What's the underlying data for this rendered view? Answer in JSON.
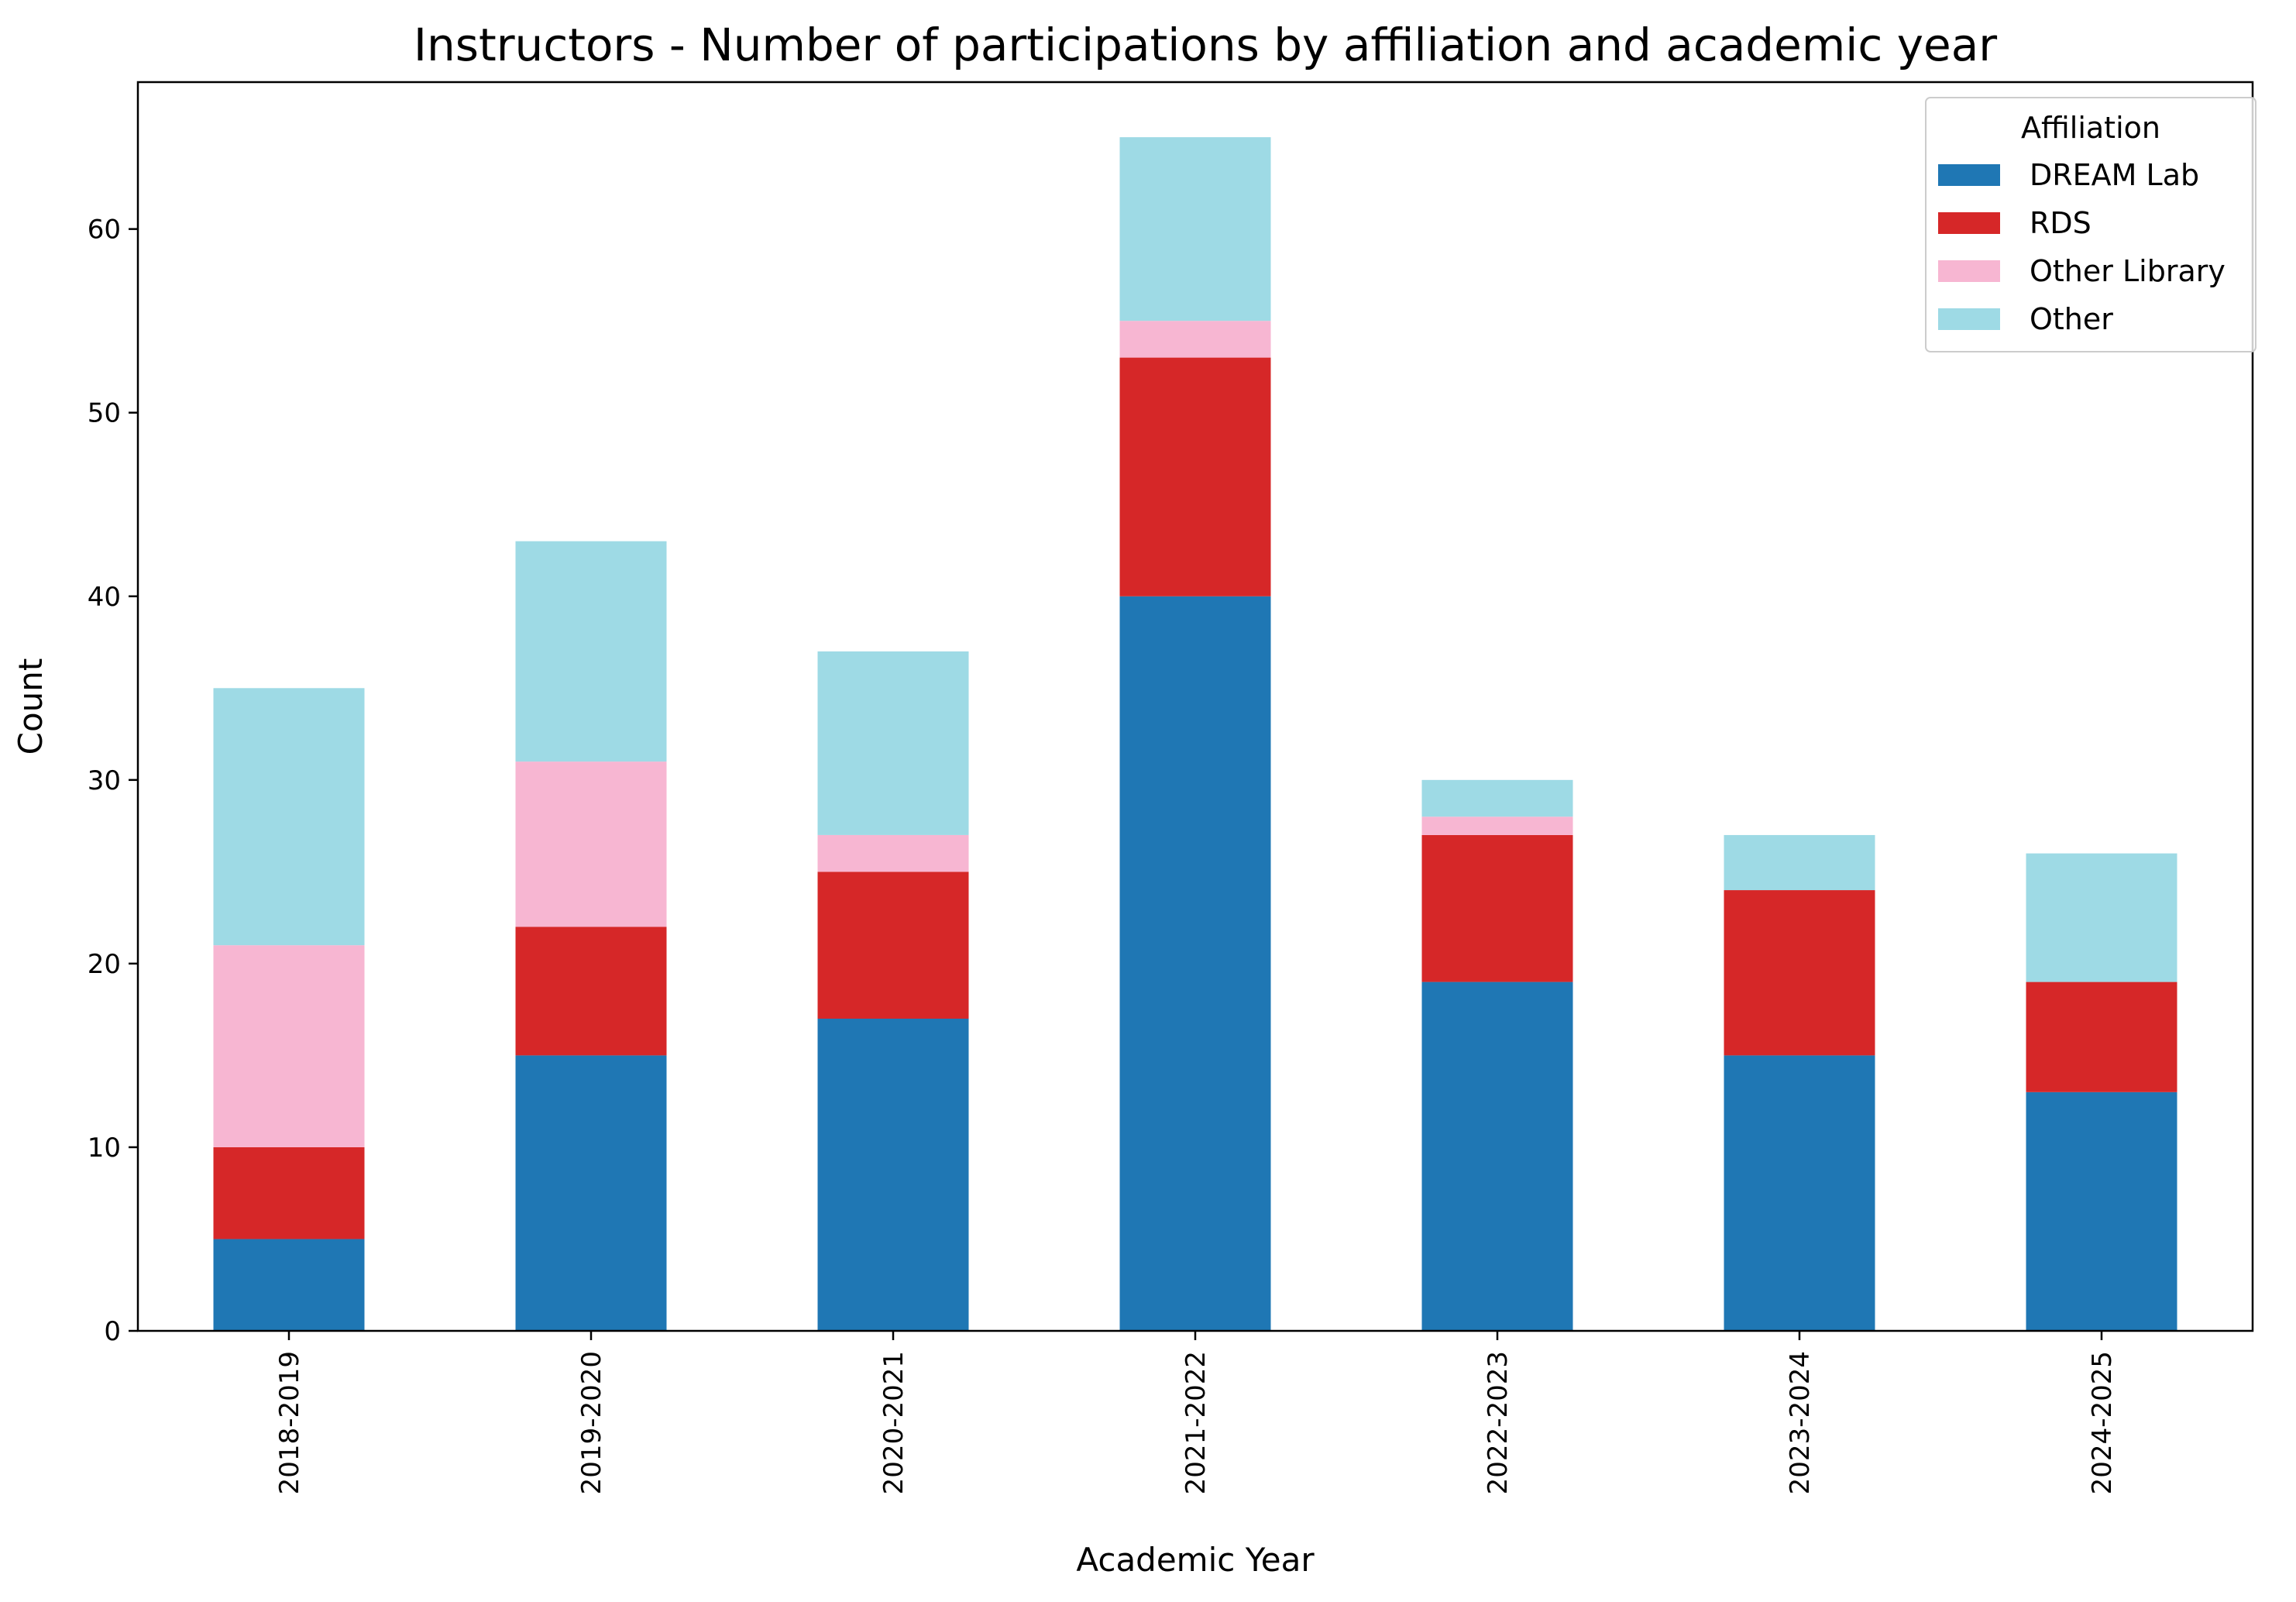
{
  "chart_data": {
    "type": "bar",
    "stacked": true,
    "title": "Instructors - Number of participations by affiliation and academic year",
    "xlabel": "Academic Year",
    "ylabel": "Count",
    "ylim": [
      0,
      68
    ],
    "yticks": [
      0,
      10,
      20,
      30,
      40,
      50,
      60
    ],
    "categories": [
      "2018-2019",
      "2019-2020",
      "2020-2021",
      "2021-2022",
      "2022-2023",
      "2023-2024",
      "2024-2025"
    ],
    "series": [
      {
        "name": "DREAM Lab",
        "color": "#1f77b4",
        "values": [
          5,
          15,
          17,
          40,
          19,
          15,
          13
        ]
      },
      {
        "name": "RDS",
        "color": "#d62728",
        "values": [
          5,
          7,
          8,
          13,
          8,
          9,
          6
        ]
      },
      {
        "name": "Other Library",
        "color": "#f7b6d2",
        "values": [
          11,
          9,
          2,
          2,
          1,
          0,
          0
        ]
      },
      {
        "name": "Other",
        "color": "#9edae5",
        "values": [
          14,
          12,
          10,
          10,
          2,
          3,
          7
        ]
      }
    ],
    "legend": {
      "title": "Affiliation",
      "position": "top-right"
    },
    "grid": false
  }
}
